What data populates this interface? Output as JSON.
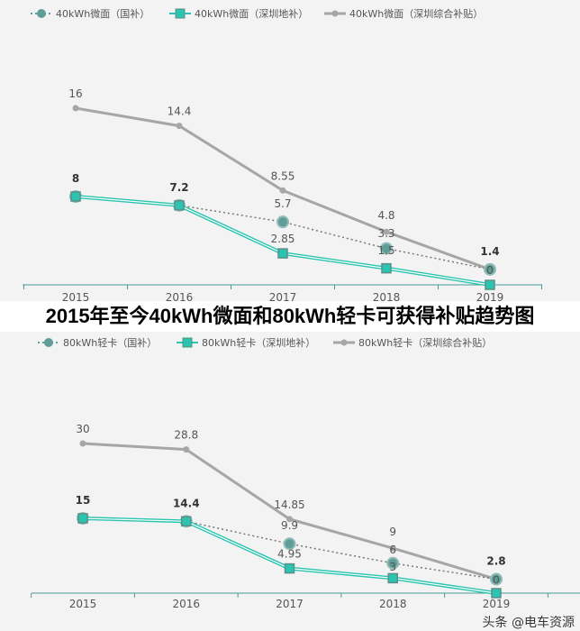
{
  "title": "2015年至今40kWh微面和80kWh轻卡可获得补贴趋势图",
  "watermark": "头条 @电车资源",
  "colors": {
    "national": "#5f9e98",
    "local": "#2bc4b0",
    "combined": "#a6a6a6",
    "axis": "#4a9a94"
  },
  "chart_data": [
    {
      "type": "line",
      "categories": [
        "2015",
        "2016",
        "2017",
        "2018",
        "2019"
      ],
      "ylim": [
        0,
        16
      ],
      "grid": false,
      "legend": "top",
      "series": [
        {
          "name": "40kWh微面（国补）",
          "values": [
            8,
            7.2,
            5.7,
            3.3,
            1.4
          ]
        },
        {
          "name": "40kWh微面（深圳地补）",
          "values": [
            8,
            7.2,
            2.85,
            1.5,
            0
          ]
        },
        {
          "name": "40kWh微面（深圳综合补贴）",
          "values": [
            16,
            14.4,
            8.55,
            4.8,
            1.4
          ]
        }
      ]
    },
    {
      "type": "line",
      "categories": [
        "2015",
        "2016",
        "2017",
        "2018",
        "2019"
      ],
      "ylim": [
        0,
        30
      ],
      "grid": false,
      "legend": "top",
      "series": [
        {
          "name": "80kWh轻卡（国补）",
          "values": [
            15,
            14.4,
            9.9,
            6,
            2.8
          ]
        },
        {
          "name": "80kWh轻卡（深圳地补）",
          "values": [
            15,
            14.4,
            4.95,
            3,
            0
          ]
        },
        {
          "name": "80kWh轻卡（深圳综合补贴）",
          "values": [
            30,
            28.8,
            14.85,
            9,
            2.8
          ]
        }
      ]
    }
  ]
}
